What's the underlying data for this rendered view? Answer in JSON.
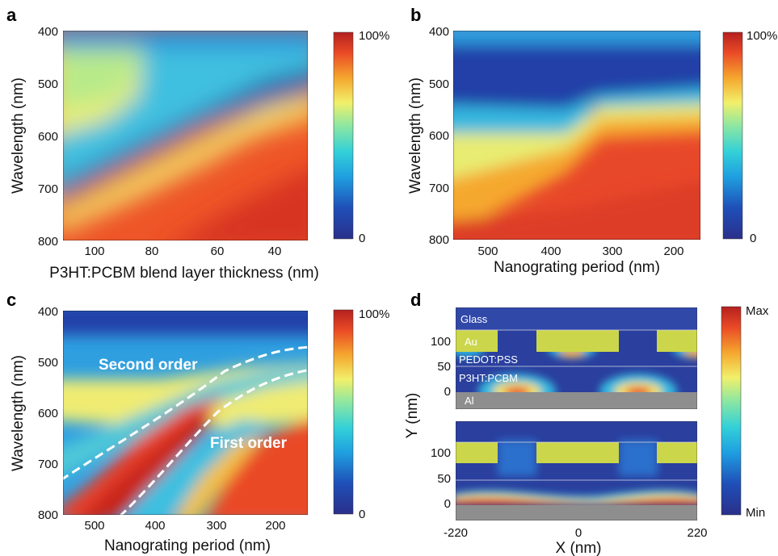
{
  "colorscale": [
    "#2a2f8a",
    "#1f4fb8",
    "#1f9fe0",
    "#32d0d8",
    "#8fe7a0",
    "#f2f06a",
    "#f5a62e",
    "#ea4a26",
    "#b4201f"
  ],
  "chart_data": [
    {
      "panel": "a",
      "type": "heatmap",
      "xlabel": "P3HT:PCBM blend layer thickness (nm)",
      "ylabel": "Wavelength (nm)",
      "xlim": [
        110,
        30
      ],
      "ylim": [
        400,
        800
      ],
      "xticks": [
        100,
        80,
        60,
        40
      ],
      "yticks": [
        400,
        500,
        600,
        700,
        800
      ],
      "colorbar": {
        "top": "100%",
        "bottom": "0"
      },
      "ridges": [
        {
          "feature": "absorption minimum (dark blue band)",
          "points": [
            [
              110,
              690
            ],
            [
              90,
              615
            ],
            [
              70,
              555
            ],
            [
              55,
              505
            ],
            [
              40,
              460
            ],
            [
              30,
              440
            ]
          ]
        },
        {
          "feature": "high absorption (yellow region)",
          "points": [
            [
              110,
              555
            ],
            [
              95,
              520
            ],
            [
              85,
              480
            ],
            [
              80,
              440
            ]
          ]
        }
      ]
    },
    {
      "panel": "b",
      "type": "heatmap",
      "xlabel": "Nanograting period (nm)",
      "ylabel": "Wavelength (nm)",
      "xlim": [
        560,
        150
      ],
      "ylim": [
        400,
        800
      ],
      "xticks": [
        500,
        400,
        300,
        200
      ],
      "yticks": [
        400,
        500,
        600,
        700,
        800
      ],
      "colorbar": {
        "top": "100%",
        "bottom": "0"
      },
      "ridges": [
        {
          "feature": "absorption edge",
          "points": [
            [
              560,
              790
            ],
            [
              480,
              700
            ],
            [
              420,
              630
            ],
            [
              370,
              560
            ],
            [
              300,
              545
            ],
            [
              150,
              540
            ]
          ]
        }
      ]
    },
    {
      "panel": "c",
      "type": "heatmap",
      "xlabel": "Nanograting period (nm)",
      "ylabel": "Wavelength (nm)",
      "xlim": [
        560,
        150
      ],
      "ylim": [
        400,
        800
      ],
      "xticks": [
        500,
        400,
        300,
        200
      ],
      "yticks": [
        400,
        500,
        600,
        700,
        800
      ],
      "colorbar": {
        "top": "100%",
        "bottom": "0"
      },
      "annotations": [
        "Second order",
        "First order"
      ],
      "curves": [
        {
          "name": "Second order",
          "points": [
            [
              560,
              730
            ],
            [
              500,
              665
            ],
            [
              420,
              595
            ],
            [
              360,
              555
            ],
            [
              300,
              515
            ],
            [
              240,
              490
            ],
            [
              200,
              478
            ],
            [
              155,
              472
            ]
          ]
        },
        {
          "name": "First order",
          "points": [
            [
              460,
              800
            ],
            [
              420,
              750
            ],
            [
              370,
              680
            ],
            [
              320,
              620
            ],
            [
              270,
              570
            ],
            [
              220,
              520
            ],
            [
              180,
              495
            ],
            [
              155,
              483
            ]
          ]
        }
      ]
    },
    {
      "panel": "d",
      "type": "heatmap",
      "xlabel": "X (nm)",
      "ylabel": "Y (nm)",
      "xlim": [
        -220,
        220
      ],
      "xticks": [
        -220,
        0,
        220
      ],
      "yticks": [
        0,
        50,
        100
      ],
      "colorbar": {
        "top": "Max",
        "bottom": "Min"
      },
      "layers": [
        "Glass",
        "Au",
        "PEDOT:PSS",
        "P3HT:PCBM",
        "Al"
      ]
    }
  ]
}
